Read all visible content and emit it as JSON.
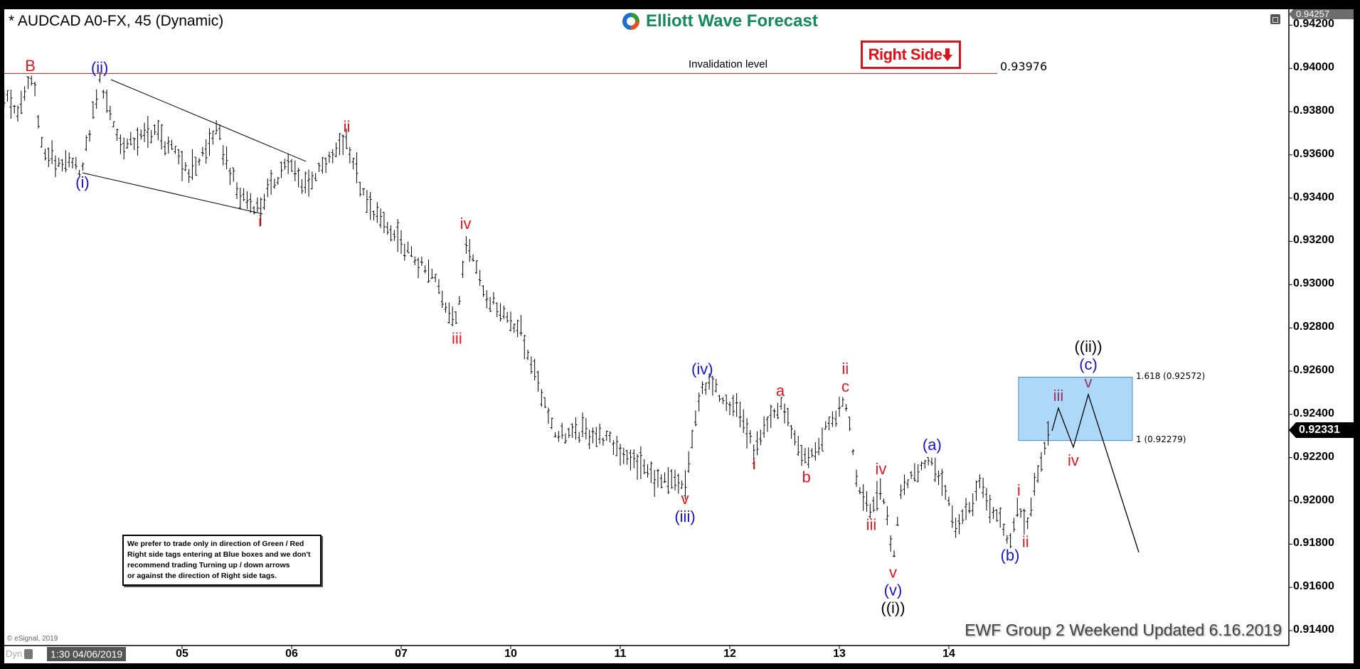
{
  "window": {
    "title": "* AUDCAD A0-FX, 45 (Dynamic)"
  },
  "logo": {
    "text": "Elliott Wave Forecast"
  },
  "tag": {
    "label": "Right Side",
    "arrow": "down-arrow",
    "color": "#e0101a"
  },
  "notice": {
    "lines": [
      "We prefer to trade only in direction of Green / Red",
      "Right side tags entering at Blue boxes and we don't",
      "recommend trading Turning up / down arrows",
      "or against the direction of Right side tags."
    ]
  },
  "copyright": "© eSignal, 2019",
  "footer": "EWF Group 2 Weekend Updated 6.16.2019",
  "bottom_bar": {
    "mode": "Dyn",
    "cursor_time": "1:30 04/06/2019"
  },
  "icons": {
    "restore": "restore-window-icon",
    "lock": "lock-icon",
    "logo": "ewf-swirl-logo-icon"
  },
  "chart_data": {
    "type": "ohlc-bar",
    "symbol": "AUDCAD A0-FX",
    "interval": "45",
    "ylim": [
      0.9135,
      0.9426
    ],
    "yticks": [
      "0.94200",
      "0.94000",
      "0.93800",
      "0.93600",
      "0.93400",
      "0.93200",
      "0.93000",
      "0.92800",
      "0.92600",
      "0.92400",
      "0.92200",
      "0.92000",
      "0.91800",
      "0.91600",
      "0.91400"
    ],
    "xticks": [
      {
        "label": "05",
        "date": "2019-06-05"
      },
      {
        "label": "06",
        "date": "2019-06-06"
      },
      {
        "label": "07",
        "date": "2019-06-07"
      },
      {
        "label": "10",
        "date": "2019-06-10"
      },
      {
        "label": "11",
        "date": "2019-06-11"
      },
      {
        "label": "12",
        "date": "2019-06-12"
      },
      {
        "label": "13",
        "date": "2019-06-13"
      },
      {
        "label": "14",
        "date": "2019-06-14"
      }
    ],
    "trading_days": [
      "2019-06-03",
      "2019-06-04",
      "2019-06-05",
      "2019-06-06",
      "2019-06-07",
      "2019-06-10",
      "2019-06-11",
      "2019-06-12",
      "2019-06-13",
      "2019-06-14",
      "2019-06-17",
      "2019-06-18"
    ],
    "last_price": "0.92331",
    "top_price": "0.94257",
    "colors": {
      "red": "#e8141c",
      "blue": "#1414d2",
      "purple": "#993366",
      "black": "#000000",
      "box": "#aed8f8",
      "box_border": "#3a8fd0"
    },
    "price_path": [
      {
        "t": "2019-06-03 09:00",
        "p": 0.93876
      },
      {
        "t": "2019-06-03 12:17",
        "p": 0.93794
      },
      {
        "t": "2019-06-03 14:45",
        "p": 0.93955,
        "labels": [
          {
            "text": "B",
            "color": "red",
            "pos": "above"
          }
        ]
      },
      {
        "t": "2019-06-03 15:42",
        "p": 0.93915
      },
      {
        "t": "2019-06-03 17:36",
        "p": 0.93594
      },
      {
        "t": "2019-06-04 02:10",
        "p": 0.93534,
        "labels": [
          {
            "text": "(i)",
            "color": "blue",
            "pos": "below"
          }
        ]
      },
      {
        "t": "2019-06-04 05:57",
        "p": 0.93947,
        "labels": [
          {
            "text": "(ii)",
            "color": "blue",
            "pos": "above"
          }
        ]
      },
      {
        "t": "2019-06-04 10:42",
        "p": 0.93634
      },
      {
        "t": "2019-06-04 18:17",
        "p": 0.93714
      },
      {
        "t": "2019-06-05 01:54",
        "p": 0.93514
      },
      {
        "t": "2019-06-05 07:36",
        "p": 0.93714
      },
      {
        "t": "2019-06-05 12:20",
        "p": 0.93414
      },
      {
        "t": "2019-06-05 17:05",
        "p": 0.93354,
        "labels": [
          {
            "text": "i",
            "color": "red",
            "pos": "below"
          }
        ]
      },
      {
        "t": "2019-06-05 22:47",
        "p": 0.93574
      },
      {
        "t": "2019-06-06 02:35",
        "p": 0.93454
      },
      {
        "t": "2019-06-06 08:17",
        "p": 0.93574
      },
      {
        "t": "2019-06-06 12:05",
        "p": 0.93674,
        "labels": [
          {
            "text": "ii",
            "color": "red",
            "pos": "above"
          }
        ]
      },
      {
        "t": "2019-06-06 15:53",
        "p": 0.93394
      },
      {
        "t": "2019-06-06 23:30",
        "p": 0.93193
      },
      {
        "t": "2019-06-07 07:05",
        "p": 0.93033
      },
      {
        "t": "2019-06-07 12:13",
        "p": 0.92812,
        "labels": [
          {
            "text": "iii",
            "color": "red",
            "pos": "below"
          }
        ]
      },
      {
        "t": "2019-06-07 14:07",
        "p": 0.93225,
        "labels": [
          {
            "text": "iv",
            "color": "red",
            "pos": "above"
          }
        ]
      },
      {
        "t": "2019-06-07 18:29",
        "p": 0.92953
      },
      {
        "t": "2019-06-10 02:05",
        "p": 0.92792
      },
      {
        "t": "2019-06-10 07:48",
        "p": 0.92432
      },
      {
        "t": "2019-06-10 09:42",
        "p": 0.92312
      },
      {
        "t": "2019-06-10 19:11",
        "p": 0.92312
      },
      {
        "t": "2019-06-11 08:28",
        "p": 0.92091
      },
      {
        "t": "2019-06-11 14:11",
        "p": 0.92071,
        "labels": [
          {
            "text": "v",
            "color": "red",
            "pos": "below"
          },
          {
            "text": "(iii)",
            "color": "blue",
            "pos": "below"
          }
        ]
      },
      {
        "t": "2019-06-11 17:58",
        "p": 0.92552,
        "labels": [
          {
            "text": "(iv)",
            "color": "blue",
            "pos": "above"
          }
        ]
      },
      {
        "t": "2019-06-12 01:35",
        "p": 0.92432
      },
      {
        "t": "2019-06-12 05:21",
        "p": 0.92231,
        "labels": [
          {
            "text": "i",
            "color": "red",
            "pos": "below"
          }
        ]
      },
      {
        "t": "2019-06-12 11:04",
        "p": 0.92452,
        "labels": [
          {
            "text": "a",
            "color": "red",
            "pos": "above"
          }
        ]
      },
      {
        "t": "2019-06-12 16:46",
        "p": 0.92171,
        "labels": [
          {
            "text": "b",
            "color": "red",
            "pos": "below"
          }
        ]
      },
      {
        "t": "2019-06-13 01:19",
        "p": 0.92472,
        "labels": [
          {
            "text": "c",
            "color": "red",
            "pos": "above"
          },
          {
            "text": "ii",
            "color": "red",
            "pos": "above"
          }
        ]
      },
      {
        "t": "2019-06-13 04:11",
        "p": 0.92071
      },
      {
        "t": "2019-06-13 07:00",
        "p": 0.91951,
        "labels": [
          {
            "text": "iii",
            "color": "red",
            "pos": "below"
          }
        ]
      },
      {
        "t": "2019-06-13 09:07",
        "p": 0.92091,
        "labels": [
          {
            "text": "iv",
            "color": "red",
            "pos": "above"
          }
        ]
      },
      {
        "t": "2019-06-13 11:46",
        "p": 0.9173,
        "labels": [
          {
            "text": "v",
            "color": "red",
            "pos": "below"
          },
          {
            "text": "(v)",
            "color": "blue",
            "pos": "below"
          },
          {
            "text": "((i))",
            "color": "black",
            "pos": "below"
          }
        ]
      },
      {
        "t": "2019-06-13 13:41",
        "p": 0.92071
      },
      {
        "t": "2019-06-13 20:19",
        "p": 0.92203,
        "labels": [
          {
            "text": "(a)",
            "color": "blue",
            "pos": "above"
          }
        ]
      },
      {
        "t": "2019-06-14 02:01",
        "p": 0.91871
      },
      {
        "t": "2019-06-14 06:46",
        "p": 0.92071
      },
      {
        "t": "2019-06-14 13:24",
        "p": 0.9181,
        "labels": [
          {
            "text": "(b)",
            "color": "blue",
            "pos": "below"
          }
        ]
      },
      {
        "t": "2019-06-14 15:19",
        "p": 0.91991,
        "labels": [
          {
            "text": "i",
            "color": "red",
            "pos": "above"
          }
        ]
      },
      {
        "t": "2019-06-14 16:48",
        "p": 0.91871,
        "labels": [
          {
            "text": "ii",
            "color": "red",
            "pos": "below"
          }
        ]
      },
      {
        "t": "2019-06-14 21:57",
        "p": 0.92331
      }
    ],
    "projection": [
      {
        "t": "2019-06-14 22:36",
        "p": 0.92324
      },
      {
        "t": "2019-06-17 00:00",
        "p": 0.92429,
        "labels": [
          {
            "text": "iii",
            "color": "purple",
            "pos": "above"
          }
        ]
      },
      {
        "t": "2019-06-17 03:16",
        "p": 0.92248,
        "labels": [
          {
            "text": "iv",
            "color": "red",
            "pos": "below"
          }
        ]
      },
      {
        "t": "2019-06-17 06:33",
        "p": 0.92492,
        "labels": [
          {
            "text": "v",
            "color": "purple",
            "pos": "above"
          },
          {
            "text": "(c)",
            "color": "blue",
            "pos": "above"
          },
          {
            "text": "((ii))",
            "color": "black",
            "pos": "above"
          }
        ]
      },
      {
        "t": "2019-06-17 17:37",
        "p": 0.91762
      }
    ],
    "invalidation": {
      "label": "Invalidation level",
      "price": 0.93976,
      "value_label": "0.93976",
      "end": "2019-06-14 10:36"
    },
    "blue_box": {
      "start": "2019-06-14 15:16",
      "end": "2019-06-17 16:12",
      "low": 0.92279,
      "high": 0.92572,
      "low_label": "1 (0.92279)",
      "high_label": "1.618 (0.92572)"
    },
    "trendlines": [
      {
        "from": {
          "t": "2019-06-04 08:25",
          "p": 0.93948
        },
        "to": {
          "t": "2019-06-06 03:07",
          "p": 0.9357
        }
      },
      {
        "from": {
          "t": "2019-06-04 02:11",
          "p": 0.93517
        },
        "to": {
          "t": "2019-06-05 17:37",
          "p": 0.93327
        }
      }
    ]
  }
}
